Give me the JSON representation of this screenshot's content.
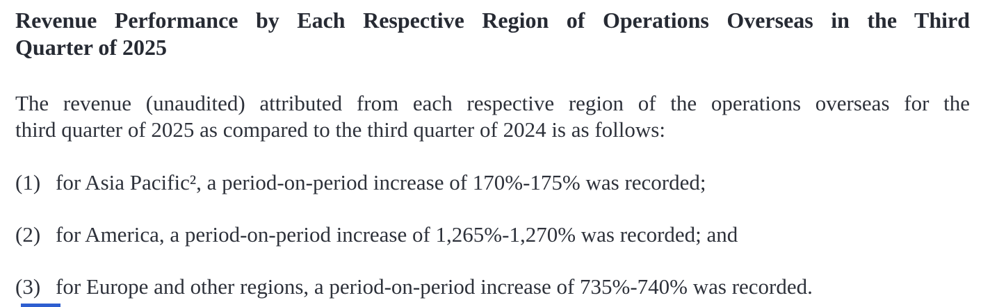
{
  "document": {
    "heading": {
      "lines": [
        "Revenue Performance by Each Respective Region of Operations Overseas in the Third",
        "Quarter of 2025"
      ]
    },
    "intro": {
      "lines": [
        "The revenue (unaudited) attributed from each respective region of the operations overseas for the",
        "third quarter of 2025 as compared to the third quarter of 2024 is as follows:"
      ]
    },
    "list": {
      "items": [
        {
          "marker": "(1)",
          "text": "for Asia Pacific², a period-on-period increase of 170%-175% was recorded;"
        },
        {
          "marker": "(2)",
          "text": "for America, a period-on-period increase of 1,265%-1,270% was recorded; and"
        },
        {
          "marker": "(3)",
          "text": "for Europe and other regions, a period-on-period increase of 735%-740% was recorded."
        }
      ]
    },
    "colors": {
      "heading_text": "#262a33",
      "body_text": "#2d313a",
      "accent_blue": "#2e5ed0"
    }
  }
}
